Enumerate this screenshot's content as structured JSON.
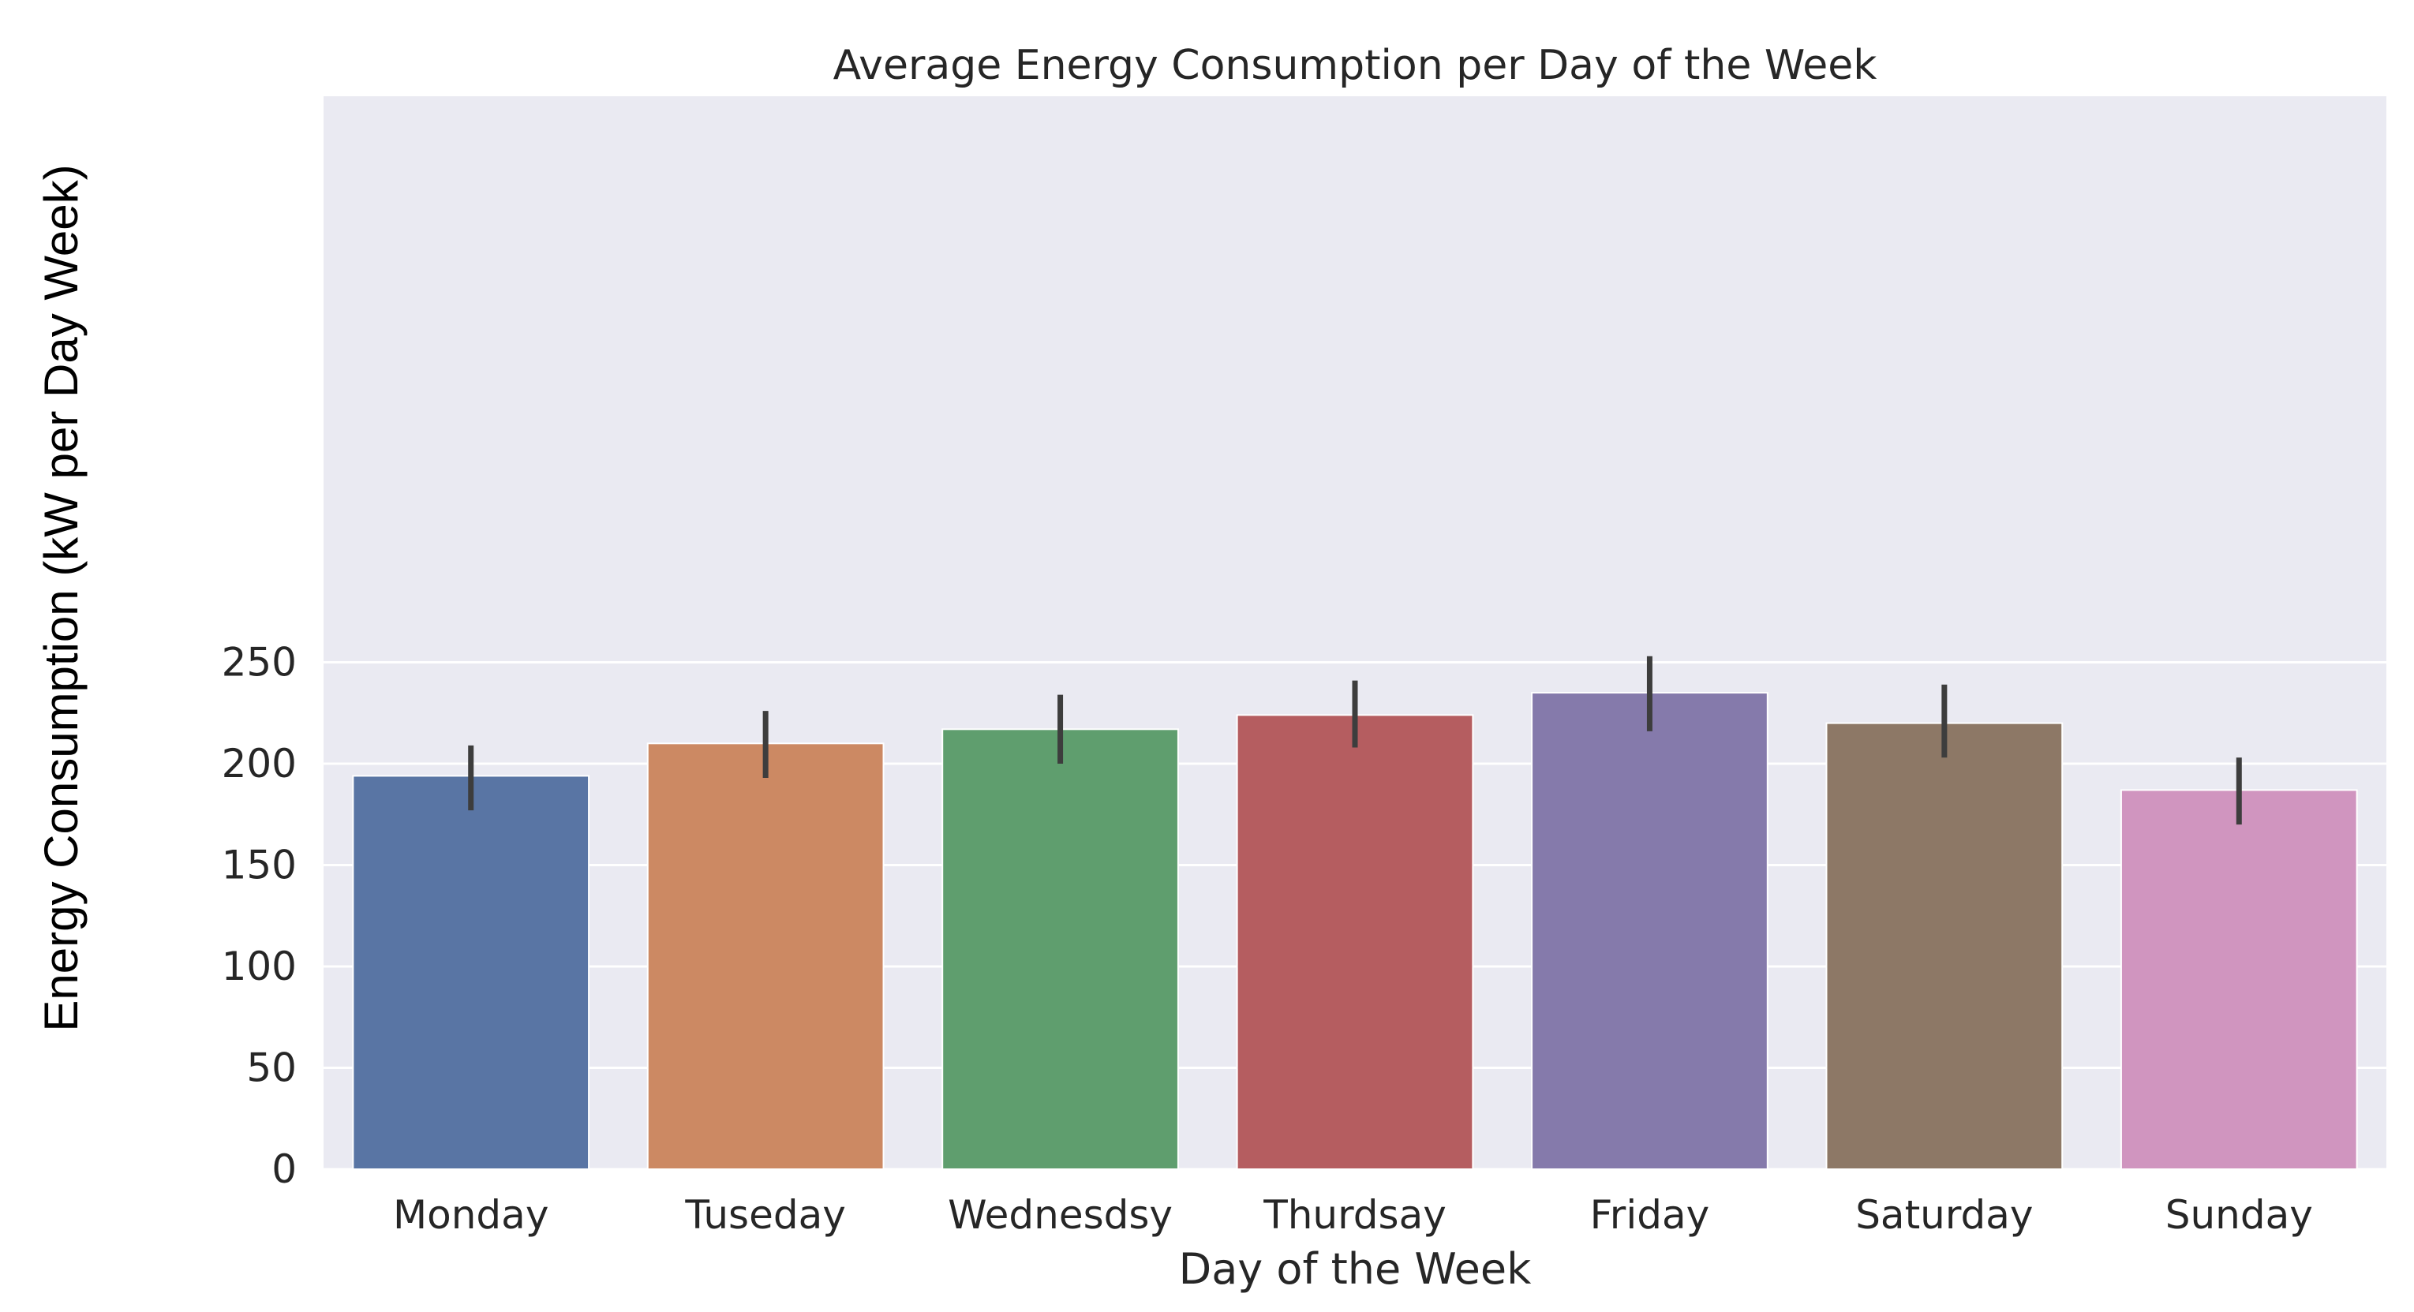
{
  "chart_data": {
    "type": "bar",
    "title": "Average Energy Consumption per Day of the Week",
    "xlabel": "Day of the Week",
    "ylabel": "Energy Consumption (kW per Day Week)",
    "categories": [
      "Monday",
      "Tuseday",
      "Wednesdsy",
      "Thurdsay",
      "Friday",
      "Saturday",
      "Sunday"
    ],
    "values": [
      194,
      210,
      217,
      224,
      235,
      220,
      187
    ],
    "error_bars": [
      {
        "low": 177,
        "high": 209
      },
      {
        "low": 193,
        "high": 226
      },
      {
        "low": 200,
        "high": 234
      },
      {
        "low": 208,
        "high": 241
      },
      {
        "low": 216,
        "high": 253
      },
      {
        "low": 203,
        "high": 239
      },
      {
        "low": 170,
        "high": 203
      }
    ],
    "colors": [
      "#5975a4",
      "#cc8963",
      "#5f9e6e",
      "#b55d60",
      "#857aab",
      "#8d7866",
      "#d095bf"
    ],
    "yticks": [
      0,
      50,
      100,
      150,
      200,
      250
    ],
    "ylim": [
      0,
      263
    ],
    "grid": "horizontal",
    "legend": "none"
  }
}
